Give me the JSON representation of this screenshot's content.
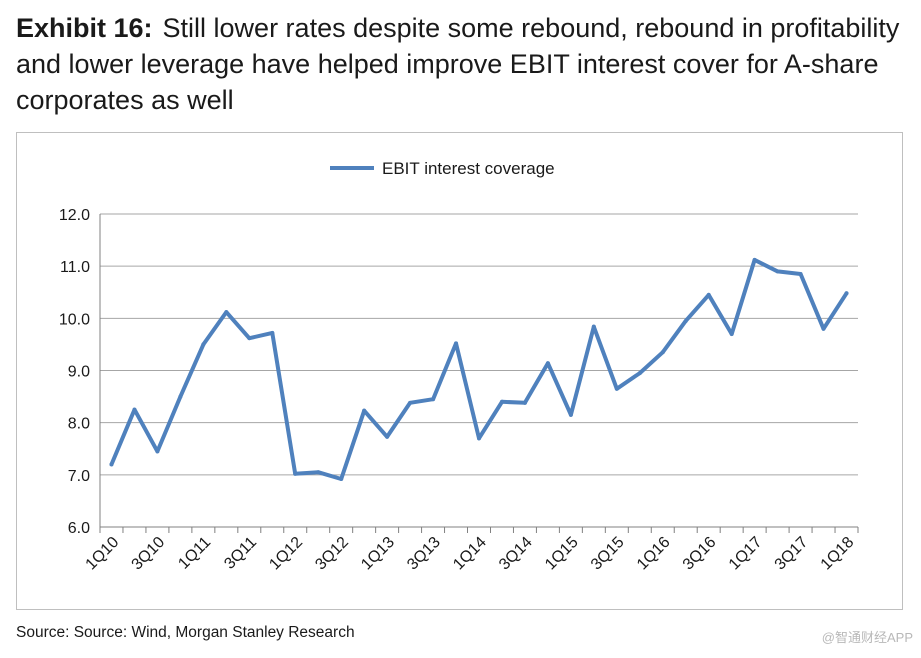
{
  "header": {
    "label": "Exhibit 16:",
    "text": "Still lower rates despite some rebound, rebound in profitability and lower leverage have helped improve EBIT interest cover for A-share corporates as well"
  },
  "footer": {
    "source": "Source: Source: Wind, Morgan Stanley Research",
    "watermark": "@智通财经APP"
  },
  "colors": {
    "series": "#4f81bd",
    "grid": "#a6a6a6",
    "axis": "#808080"
  },
  "chart_data": {
    "type": "line",
    "title": "",
    "xlabel": "",
    "ylabel": "",
    "ylim": [
      6.0,
      12.0
    ],
    "yticks": [
      "6.0",
      "7.0",
      "8.0",
      "9.0",
      "10.0",
      "11.0",
      "12.0"
    ],
    "grid": true,
    "legend": "top-center",
    "x": [
      "1Q10",
      "2Q10",
      "3Q10",
      "4Q10",
      "1Q11",
      "2Q11",
      "3Q11",
      "4Q11",
      "1Q12",
      "2Q12",
      "3Q12",
      "4Q12",
      "1Q13",
      "2Q13",
      "3Q13",
      "4Q13",
      "1Q14",
      "2Q14",
      "3Q14",
      "4Q14",
      "1Q15",
      "2Q15",
      "3Q15",
      "4Q15",
      "1Q16",
      "2Q16",
      "3Q16",
      "4Q16",
      "1Q17",
      "2Q17",
      "3Q17",
      "4Q17",
      "1Q18"
    ],
    "tick_labels": [
      "1Q10",
      "3Q10",
      "1Q11",
      "3Q11",
      "1Q12",
      "3Q12",
      "1Q13",
      "3Q13",
      "1Q14",
      "3Q14",
      "1Q15",
      "3Q15",
      "1Q16",
      "3Q16",
      "1Q17",
      "3Q17",
      "1Q18"
    ],
    "series": [
      {
        "name": "EBIT interest coverage",
        "values": [
          7.2,
          8.25,
          7.45,
          8.5,
          9.5,
          10.12,
          9.62,
          9.72,
          7.02,
          7.05,
          6.92,
          8.23,
          7.73,
          8.38,
          8.45,
          9.52,
          7.7,
          8.4,
          8.38,
          9.14,
          8.15,
          9.84,
          8.65,
          8.95,
          9.35,
          9.95,
          10.45,
          9.7,
          11.12,
          10.9,
          10.85,
          9.8,
          10.48
        ]
      }
    ]
  }
}
